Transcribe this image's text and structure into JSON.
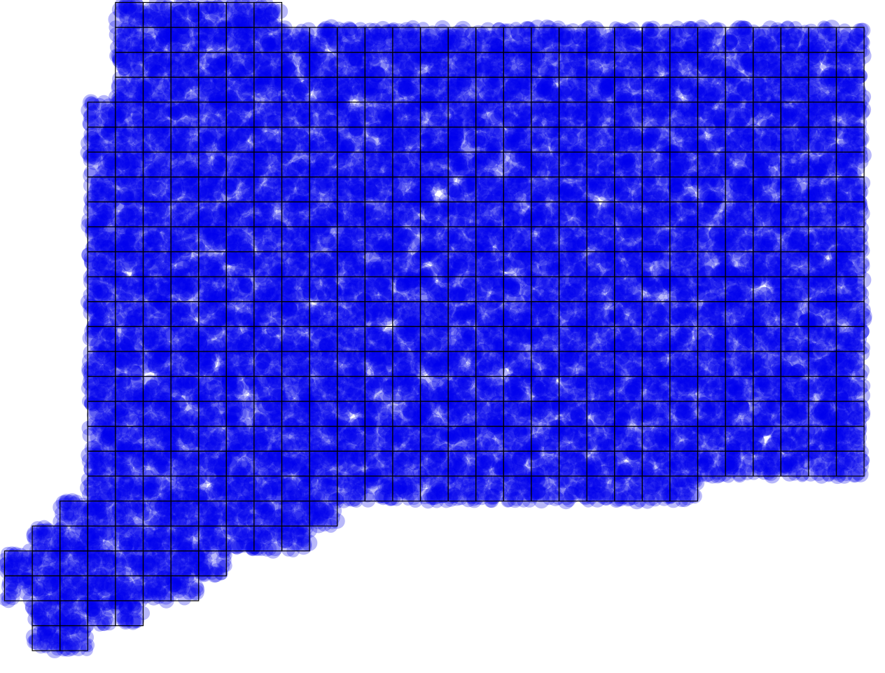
{
  "map": {
    "point_color": "#0000ee",
    "point_opacity": 0.28,
    "grid_line_color": "#000000",
    "background": "#ffffff",
    "cell_size_label": "",
    "grid_columns": 28,
    "grid_rows": 26,
    "points_per_cell_estimate": 28
  }
}
